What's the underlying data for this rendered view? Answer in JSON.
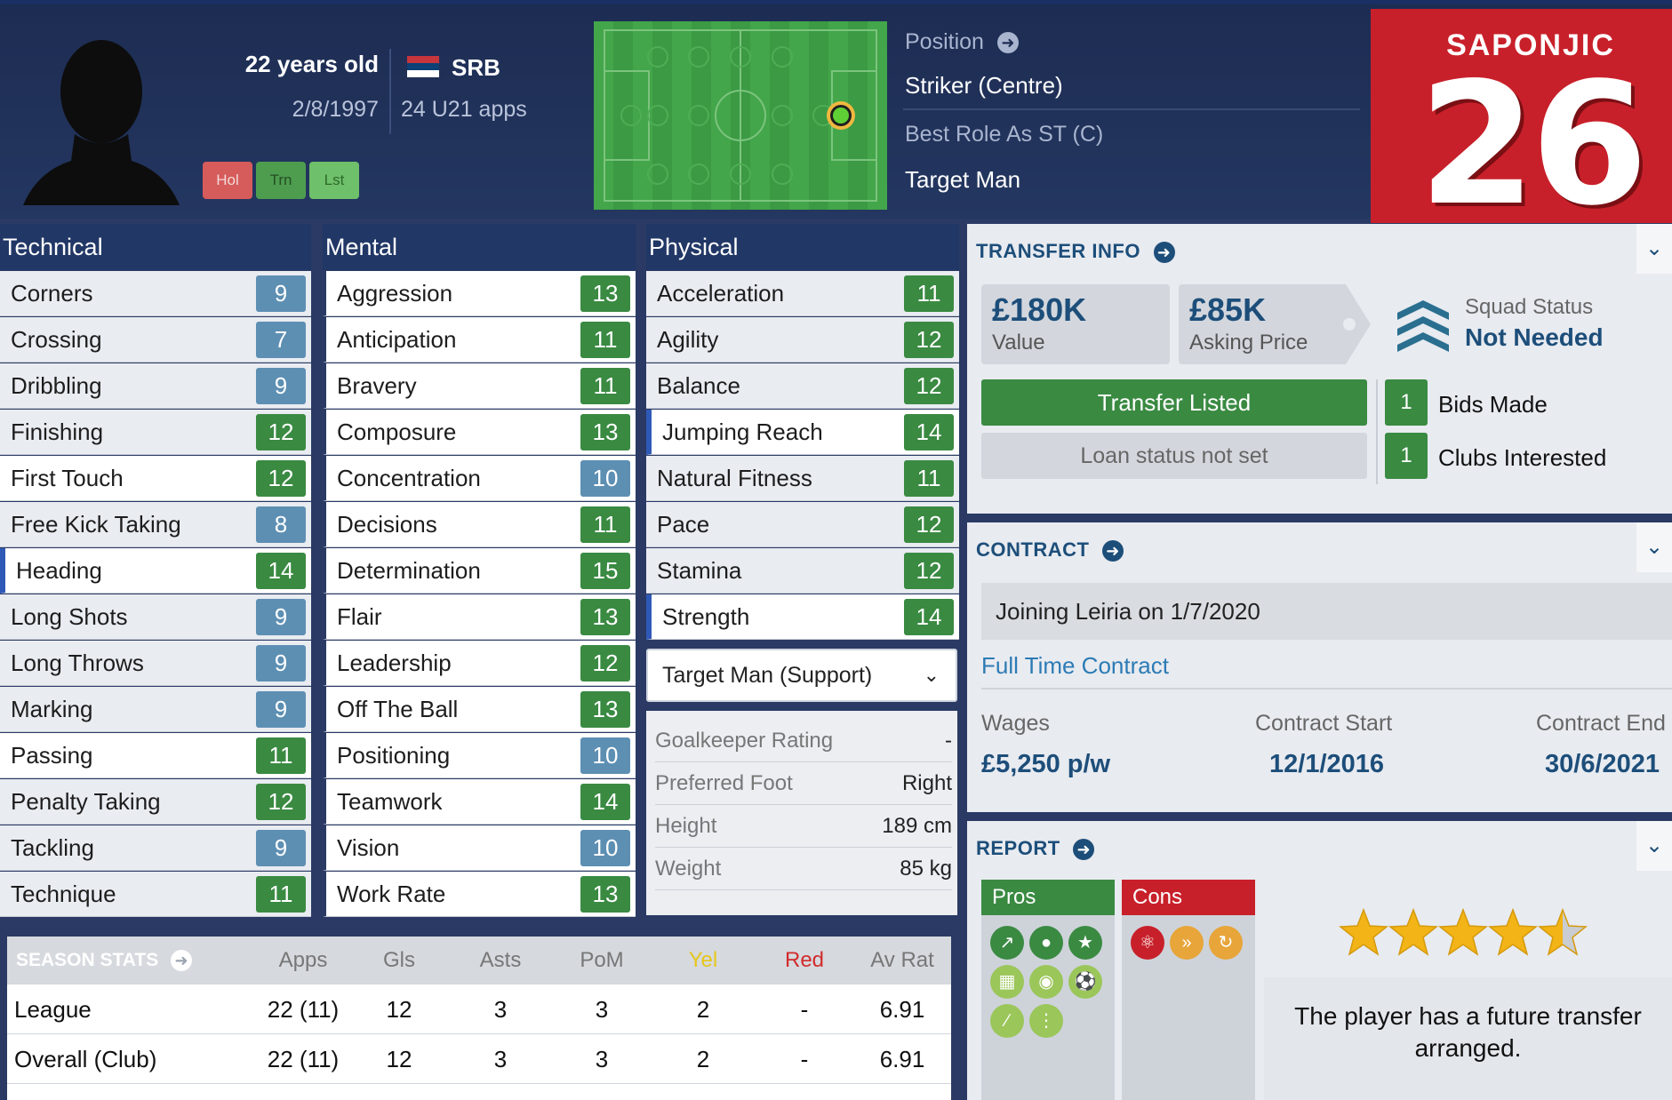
{
  "header": {
    "age": "22 years old",
    "dob": "2/8/1997",
    "nation": "SRB",
    "u21_apps": "24 U21 apps",
    "buttons": [
      "Hol",
      "Trn",
      "Lst"
    ],
    "position_label": "Position",
    "position_value": "Striker (Centre)",
    "best_role_label": "Best Role As ST (C)",
    "best_role_value": "Target Man",
    "shirt_name": "SAPONJIC",
    "shirt_number": "26"
  },
  "technical": {
    "title": "Technical",
    "attrs": [
      {
        "name": "Corners",
        "value": "9"
      },
      {
        "name": "Crossing",
        "value": "7"
      },
      {
        "name": "Dribbling",
        "value": "9"
      },
      {
        "name": "Finishing",
        "value": "12"
      },
      {
        "name": "First Touch",
        "value": "12"
      },
      {
        "name": "Free Kick Taking",
        "value": "8"
      },
      {
        "name": "Heading",
        "value": "14"
      },
      {
        "name": "Long Shots",
        "value": "9"
      },
      {
        "name": "Long Throws",
        "value": "9"
      },
      {
        "name": "Marking",
        "value": "9"
      },
      {
        "name": "Passing",
        "value": "11"
      },
      {
        "name": "Penalty Taking",
        "value": "12"
      },
      {
        "name": "Tackling",
        "value": "9"
      },
      {
        "name": "Technique",
        "value": "11"
      }
    ]
  },
  "mental": {
    "title": "Mental",
    "attrs": [
      {
        "name": "Aggression",
        "value": "13"
      },
      {
        "name": "Anticipation",
        "value": "11"
      },
      {
        "name": "Bravery",
        "value": "11"
      },
      {
        "name": "Composure",
        "value": "13"
      },
      {
        "name": "Concentration",
        "value": "10"
      },
      {
        "name": "Decisions",
        "value": "11"
      },
      {
        "name": "Determination",
        "value": "15"
      },
      {
        "name": "Flair",
        "value": "13"
      },
      {
        "name": "Leadership",
        "value": "12"
      },
      {
        "name": "Off The Ball",
        "value": "13"
      },
      {
        "name": "Positioning",
        "value": "10"
      },
      {
        "name": "Teamwork",
        "value": "14"
      },
      {
        "name": "Vision",
        "value": "10"
      },
      {
        "name": "Work Rate",
        "value": "13"
      }
    ]
  },
  "physical": {
    "title": "Physical",
    "attrs": [
      {
        "name": "Acceleration",
        "value": "11"
      },
      {
        "name": "Agility",
        "value": "12"
      },
      {
        "name": "Balance",
        "value": "12"
      },
      {
        "name": "Jumping Reach",
        "value": "14"
      },
      {
        "name": "Natural Fitness",
        "value": "11"
      },
      {
        "name": "Pace",
        "value": "12"
      },
      {
        "name": "Stamina",
        "value": "12"
      },
      {
        "name": "Strength",
        "value": "14"
      }
    ],
    "role_select": "Target Man (Support)",
    "bio": [
      {
        "label": "Goalkeeper Rating",
        "value": "-"
      },
      {
        "label": "Preferred Foot",
        "value": "Right"
      },
      {
        "label": "Height",
        "value": "189 cm"
      },
      {
        "label": "Weight",
        "value": "85 kg"
      }
    ]
  },
  "season_stats": {
    "title": "SEASON STATS",
    "columns": [
      "Apps",
      "Gls",
      "Asts",
      "PoM",
      "Yel",
      "Red",
      "Av Rat"
    ],
    "rows": [
      {
        "label": "League",
        "cells": [
          "22 (11)",
          "12",
          "3",
          "3",
          "2",
          "-",
          "6.91"
        ]
      },
      {
        "label": "Overall (Club)",
        "cells": [
          "22 (11)",
          "12",
          "3",
          "3",
          "2",
          "-",
          "6.91"
        ]
      }
    ]
  },
  "transfer": {
    "title": "TRANSFER INFO",
    "value_amount": "£180K",
    "value_label": "Value",
    "asking_amount": "£85K",
    "asking_label": "Asking Price",
    "squad_status_label": "Squad Status",
    "squad_status_value": "Not Needed",
    "transfer_listed": "Transfer Listed",
    "loan_status": "Loan status not set",
    "bids_count": "1",
    "bids_label": "Bids Made",
    "clubs_count": "1",
    "clubs_label": "Clubs Interested"
  },
  "contract": {
    "title": "CONTRACT",
    "joining": "Joining Leiria on 1/7/2020",
    "type": "Full Time Contract",
    "wages_label": "Wages",
    "wages_value": "£5,250 p/w",
    "start_label": "Contract Start",
    "start_value": "12/1/2016",
    "end_label": "Contract End",
    "end_value": "30/6/2021"
  },
  "report": {
    "title": "REPORT",
    "pros_label": "Pros",
    "cons_label": "Cons",
    "stars": 4.5,
    "text": "The player has a future transfer arranged."
  },
  "colors": {
    "header_bg": "#1d2c52",
    "attr_green": "#3a8a42",
    "attr_blue": "#5d8fb3",
    "accent_red": "#c8202a",
    "panel_title": "#1d4e7a"
  }
}
